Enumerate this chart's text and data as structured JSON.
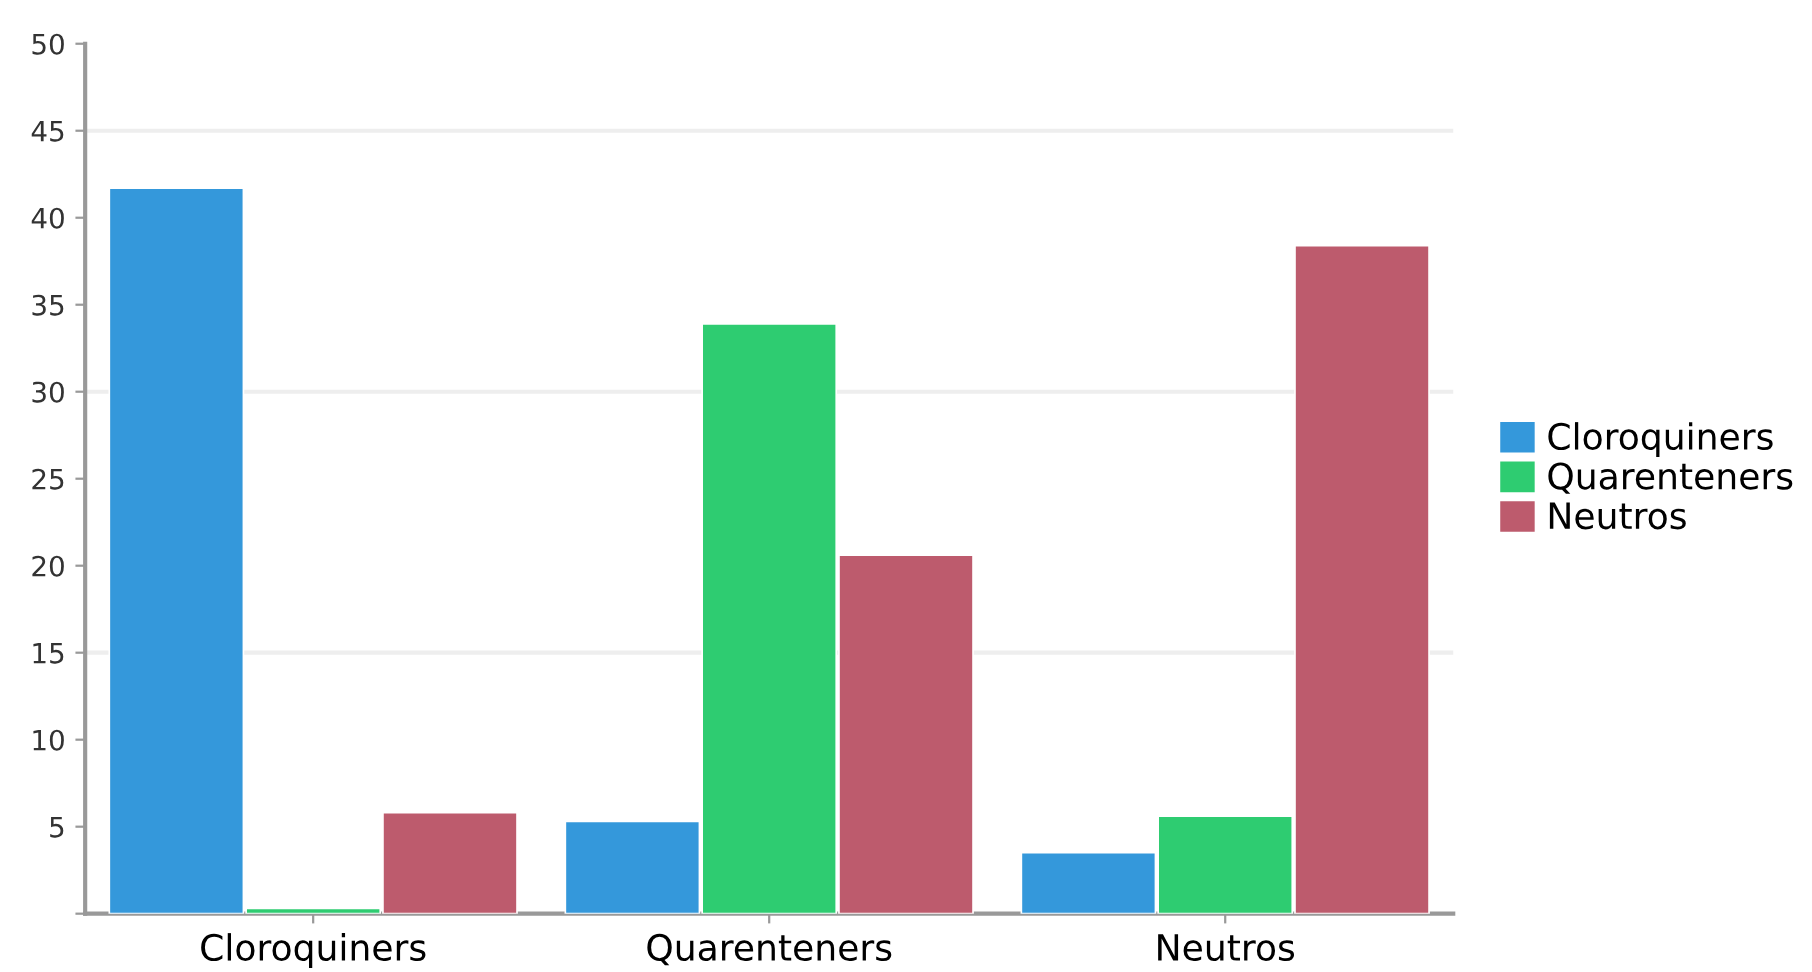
{
  "chart_data": {
    "type": "bar",
    "categories": [
      "Cloroquiners",
      "Quarenteners",
      "Neutros"
    ],
    "series": [
      {
        "name": "Cloroquiners",
        "color": "#3498db",
        "values": [
          41.7,
          5.3,
          3.5
        ]
      },
      {
        "name": "Quarenteners",
        "color": "#2ecc71",
        "values": [
          0.3,
          33.9,
          5.6
        ]
      },
      {
        "name": "Neutros",
        "color": "#bd5b6d",
        "values": [
          5.8,
          20.6,
          38.4
        ]
      }
    ],
    "ylim": [
      0,
      50
    ],
    "yticks": [
      {
        "value": 0,
        "label": null
      },
      5,
      10,
      15,
      20,
      25,
      30,
      35,
      40,
      45,
      50
    ],
    "ref_lines": [
      {
        "axis": "y",
        "value": 15,
        "color": "#eeeeee"
      },
      {
        "axis": "y",
        "value": 30,
        "color": "#eeeeee"
      },
      {
        "axis": "y",
        "value": 45,
        "color": "#eeeeee"
      }
    ],
    "legend": "right"
  }
}
